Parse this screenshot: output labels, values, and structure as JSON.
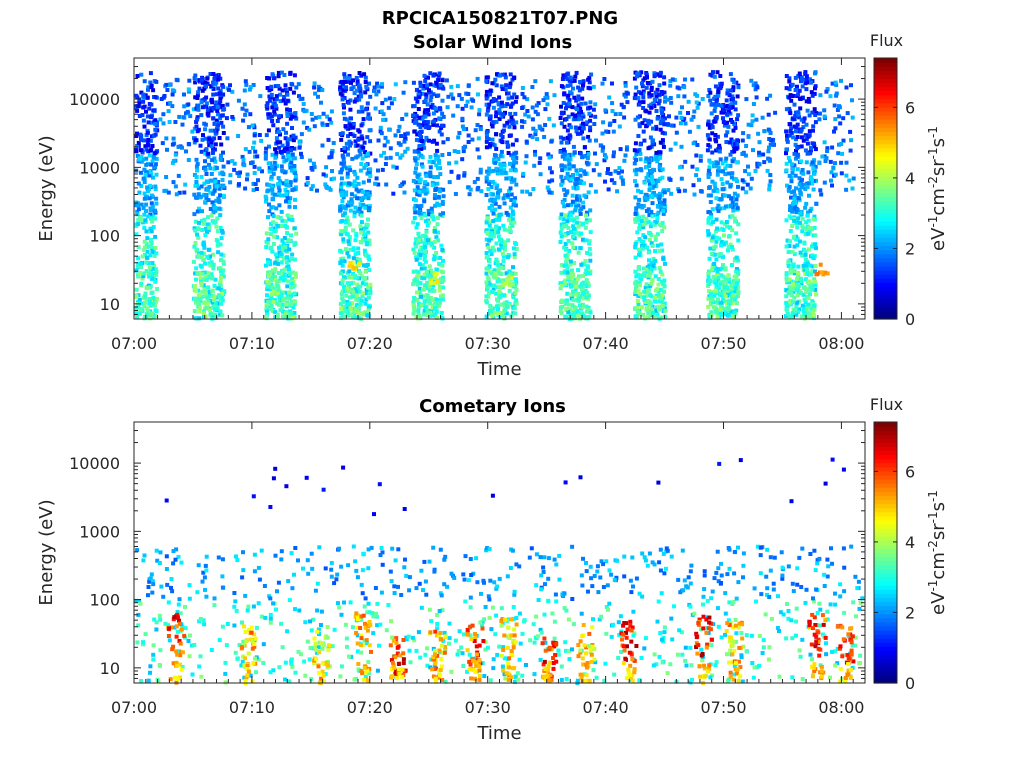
{
  "figure_title": "RPCICA150821T07.PNG",
  "chart_data": [
    {
      "type": "heatmap",
      "title": "Solar Wind Ions",
      "xlabel": "Time",
      "ylabel": "Energy (eV)",
      "x_ticks": [
        "07:00",
        "07:10",
        "07:20",
        "07:30",
        "07:40",
        "07:50",
        "08:00"
      ],
      "x_range_minutes": [
        0,
        62
      ],
      "y_scale": "log",
      "y_ticks": [
        "10",
        "100",
        "1000",
        "10000"
      ],
      "y_range": [
        6,
        40000
      ],
      "colorbar": {
        "label": "Flux",
        "unit": "eV-1cm-2sr-1s-1",
        "ticks": [
          "0",
          "2",
          "4",
          "6"
        ],
        "range": [
          0,
          7.4
        ],
        "colormap": "jet"
      },
      "sweep_centers_minutes": [
        0.5,
        6.2,
        12.3,
        18.6,
        24.8,
        31.0,
        37.3,
        43.6,
        49.8,
        56.4
      ],
      "peak_flux_points": [
        {
          "t_min": 18.6,
          "energy_eV": 35,
          "flux": 5.2
        },
        {
          "t_min": 25.4,
          "energy_eV": 25,
          "flux": 5.0
        },
        {
          "t_min": 31.8,
          "energy_eV": 22,
          "flux": 4.6
        },
        {
          "t_min": 58.2,
          "energy_eV": 32,
          "flux": 6.0
        }
      ]
    },
    {
      "type": "heatmap",
      "title": "Cometary Ions",
      "xlabel": "Time",
      "ylabel": "Energy (eV)",
      "x_ticks": [
        "07:00",
        "07:10",
        "07:20",
        "07:30",
        "07:40",
        "07:50",
        "08:00"
      ],
      "x_range_minutes": [
        0,
        62
      ],
      "y_scale": "log",
      "y_ticks": [
        "10",
        "100",
        "1000",
        "10000"
      ],
      "y_range": [
        6,
        40000
      ],
      "colorbar": {
        "label": "Flux",
        "unit": "eV-1cm-2sr-1s-1",
        "ticks": [
          "0",
          "2",
          "4",
          "6"
        ],
        "range": [
          0,
          7.4
        ],
        "colormap": "jet"
      },
      "hot_spots": [
        {
          "t_min": 3.4,
          "energy_eV": 30,
          "flux": 7.0
        },
        {
          "t_min": 9.6,
          "energy_eV": 22,
          "flux": 6.0
        },
        {
          "t_min": 15.8,
          "energy_eV": 20,
          "flux": 5.5
        },
        {
          "t_min": 19.3,
          "energy_eV": 32,
          "flux": 6.2
        },
        {
          "t_min": 22.2,
          "energy_eV": 14,
          "flux": 7.0
        },
        {
          "t_min": 25.6,
          "energy_eV": 18,
          "flux": 6.2
        },
        {
          "t_min": 28.8,
          "energy_eV": 22,
          "flux": 6.8
        },
        {
          "t_min": 31.6,
          "energy_eV": 26,
          "flux": 5.8
        },
        {
          "t_min": 35.0,
          "energy_eV": 14,
          "flux": 7.0
        },
        {
          "t_min": 38.2,
          "energy_eV": 22,
          "flux": 5.8
        },
        {
          "t_min": 41.8,
          "energy_eV": 24,
          "flux": 7.2
        },
        {
          "t_min": 48.2,
          "energy_eV": 30,
          "flux": 7.2
        },
        {
          "t_min": 50.8,
          "energy_eV": 24,
          "flux": 6.0
        },
        {
          "t_min": 57.8,
          "energy_eV": 30,
          "flux": 7.0
        },
        {
          "t_min": 60.2,
          "energy_eV": 22,
          "flux": 7.2
        }
      ]
    }
  ]
}
